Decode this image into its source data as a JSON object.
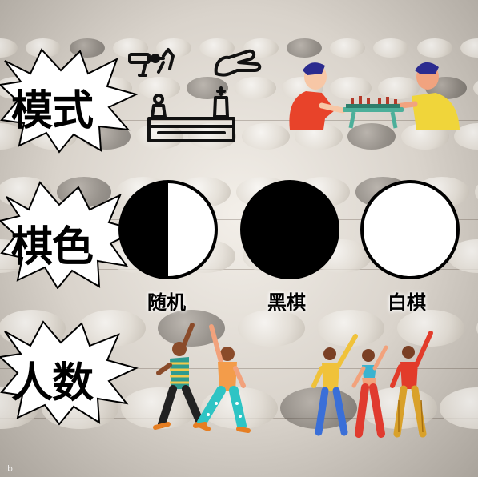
{
  "sections": {
    "mode": {
      "title": "模式"
    },
    "color": {
      "title": "棋色",
      "options": [
        {
          "label": "随机",
          "kind": "random"
        },
        {
          "label": "黑棋",
          "kind": "black"
        },
        {
          "label": "白棋",
          "kind": "white"
        }
      ]
    },
    "players": {
      "title": "人数"
    }
  },
  "watermark": "lb",
  "colors": {
    "black": "#000000",
    "white": "#ffffff"
  }
}
